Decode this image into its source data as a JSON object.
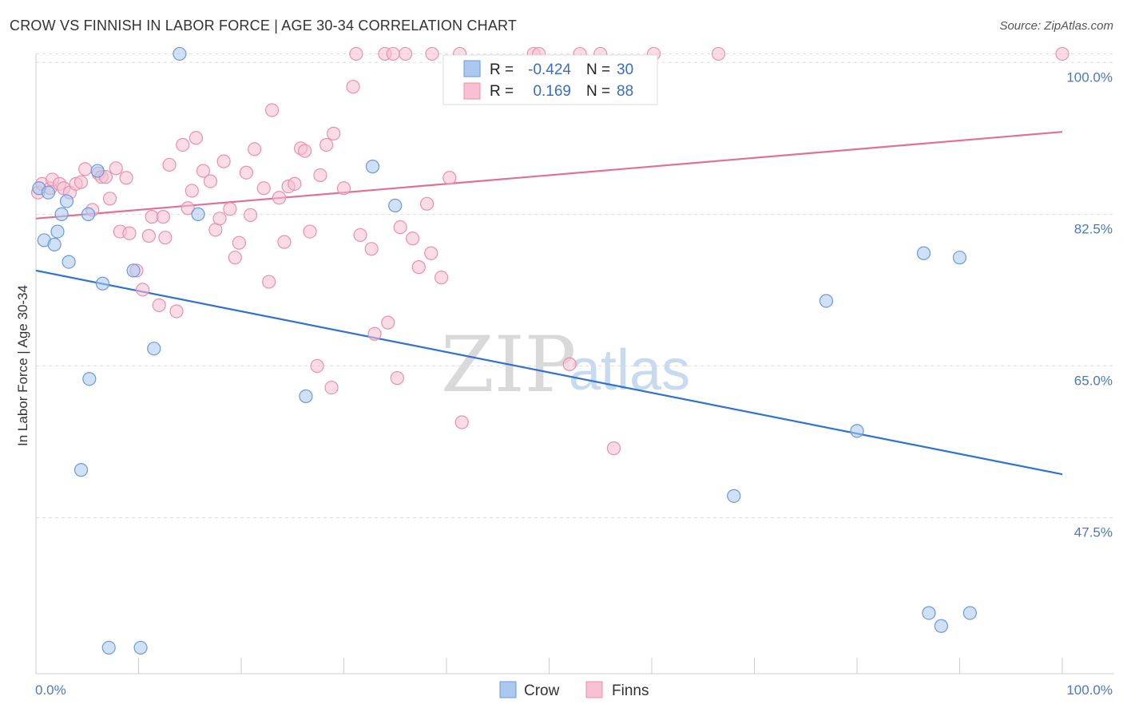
{
  "header": {
    "title": "CROW VS FINNISH IN LABOR FORCE | AGE 30-34 CORRELATION CHART",
    "source": "Source: ZipAtlas.com"
  },
  "watermark": {
    "zip": "ZIP",
    "atlas": "atlas"
  },
  "legend": {
    "r_label": "R =",
    "n_label": "N =",
    "crow": {
      "r": "-0.424",
      "n": "30"
    },
    "finns": {
      "r": "0.169",
      "n": "88"
    }
  },
  "bottom_legend": {
    "crow": "Crow",
    "finns": "Finns"
  },
  "colors": {
    "crow_fill": "#aac8f0",
    "crow_stroke": "#6a9ad8",
    "crow_line": "#2f72d0",
    "finns_fill": "#f8c0d2",
    "finns_stroke": "#e890ae",
    "finns_line": "#e07098",
    "grid": "#dddddd",
    "axis_text": "#4a78c2"
  },
  "chart_data": {
    "type": "scatter",
    "title": "CROW VS FINNISH IN LABOR FORCE | AGE 30-34 CORRELATION CHART",
    "xlabel": "",
    "ylabel": "In Labor Force | Age 30-34",
    "xlim": [
      0,
      100
    ],
    "ylim": [
      29.5,
      101.5
    ],
    "x_tick_labels": [
      "0.0%",
      "100.0%"
    ],
    "y_ticks": [
      47.5,
      65.0,
      82.5,
      100.0
    ],
    "y_tick_labels": [
      "47.5%",
      "65.0%",
      "82.5%",
      "100.0%"
    ],
    "series": [
      {
        "name": "Crow",
        "r": -0.424,
        "n": 30,
        "trend": {
          "x": [
            0,
            100
          ],
          "y": [
            76.0,
            52.5
          ]
        },
        "points": [
          [
            0.3,
            85.5
          ],
          [
            0.8,
            79.5
          ],
          [
            1.2,
            85.0
          ],
          [
            1.8,
            79.0
          ],
          [
            2.1,
            80.5
          ],
          [
            2.5,
            82.5
          ],
          [
            3.0,
            84.0
          ],
          [
            3.2,
            77.0
          ],
          [
            4.4,
            53.0
          ],
          [
            5.1,
            82.5
          ],
          [
            5.2,
            63.5
          ],
          [
            6.0,
            87.5
          ],
          [
            6.5,
            74.5
          ],
          [
            7.1,
            32.5
          ],
          [
            10.2,
            32.5
          ],
          [
            9.5,
            76.0
          ],
          [
            11.5,
            67.0
          ],
          [
            14.0,
            101.0
          ],
          [
            15.8,
            82.5
          ],
          [
            26.3,
            61.5
          ],
          [
            32.8,
            88.0
          ],
          [
            35.0,
            83.5
          ],
          [
            68.0,
            50.0
          ],
          [
            77.0,
            72.5
          ],
          [
            80.0,
            57.5
          ],
          [
            86.5,
            78.0
          ],
          [
            90.0,
            77.5
          ],
          [
            87.0,
            36.5
          ],
          [
            88.2,
            35.0
          ],
          [
            91.0,
            36.5
          ]
        ]
      },
      {
        "name": "Finns",
        "r": 0.169,
        "n": 88,
        "trend": {
          "x": [
            0,
            100
          ],
          "y": [
            82.0,
            92.0
          ]
        },
        "points": [
          [
            0.2,
            85.0
          ],
          [
            0.6,
            86.0
          ],
          [
            1.4,
            85.5
          ],
          [
            1.6,
            86.5
          ],
          [
            2.3,
            86.0
          ],
          [
            2.7,
            85.5
          ],
          [
            3.3,
            85.0
          ],
          [
            3.9,
            86.0
          ],
          [
            4.4,
            86.2
          ],
          [
            4.8,
            87.7
          ],
          [
            5.5,
            83.0
          ],
          [
            6.1,
            87.2
          ],
          [
            6.4,
            86.8
          ],
          [
            6.8,
            86.8
          ],
          [
            7.2,
            84.3
          ],
          [
            7.8,
            87.8
          ],
          [
            8.2,
            80.5
          ],
          [
            8.8,
            86.7
          ],
          [
            9.1,
            80.3
          ],
          [
            9.8,
            76.0
          ],
          [
            10.4,
            73.8
          ],
          [
            11.0,
            80.0
          ],
          [
            11.3,
            82.2
          ],
          [
            12.0,
            72.0
          ],
          [
            12.4,
            82.2
          ],
          [
            12.6,
            79.8
          ],
          [
            13.0,
            88.2
          ],
          [
            13.7,
            71.3
          ],
          [
            14.3,
            90.5
          ],
          [
            14.8,
            83.2
          ],
          [
            15.2,
            85.2
          ],
          [
            15.6,
            91.3
          ],
          [
            16.3,
            87.5
          ],
          [
            17.0,
            86.3
          ],
          [
            17.5,
            80.7
          ],
          [
            17.9,
            82.0
          ],
          [
            18.3,
            88.6
          ],
          [
            18.9,
            83.1
          ],
          [
            19.4,
            77.5
          ],
          [
            19.8,
            79.2
          ],
          [
            20.5,
            87.3
          ],
          [
            20.9,
            82.4
          ],
          [
            21.3,
            90.0
          ],
          [
            22.2,
            85.5
          ],
          [
            22.7,
            74.7
          ],
          [
            23.0,
            94.5
          ],
          [
            23.7,
            84.4
          ],
          [
            24.2,
            79.3
          ],
          [
            24.6,
            85.7
          ],
          [
            25.2,
            86.0
          ],
          [
            25.8,
            90.1
          ],
          [
            26.2,
            89.8
          ],
          [
            26.7,
            80.5
          ],
          [
            27.4,
            65.0
          ],
          [
            27.7,
            87.0
          ],
          [
            28.3,
            90.5
          ],
          [
            28.8,
            62.5
          ],
          [
            29.0,
            91.8
          ],
          [
            30.0,
            85.5
          ],
          [
            30.9,
            97.2
          ],
          [
            31.2,
            101.0
          ],
          [
            31.6,
            80.1
          ],
          [
            32.7,
            78.5
          ],
          [
            33.0,
            68.7
          ],
          [
            34.0,
            101.0
          ],
          [
            34.3,
            70.0
          ],
          [
            35.2,
            63.6
          ],
          [
            35.5,
            81.0
          ],
          [
            36.7,
            79.7
          ],
          [
            37.3,
            76.4
          ],
          [
            38.1,
            83.7
          ],
          [
            38.5,
            78.0
          ],
          [
            38.6,
            101.0
          ],
          [
            39.5,
            75.2
          ],
          [
            40.3,
            86.7
          ],
          [
            41.3,
            101.0
          ],
          [
            41.5,
            58.5
          ],
          [
            48.5,
            101.0
          ],
          [
            49.0,
            101.0
          ],
          [
            52.0,
            65.2
          ],
          [
            53.0,
            101.0
          ],
          [
            55.0,
            101.0
          ],
          [
            56.3,
            55.5
          ],
          [
            60.2,
            101.0
          ],
          [
            100.0,
            101.0
          ],
          [
            66.5,
            101.0
          ],
          [
            36.0,
            101.0
          ],
          [
            34.8,
            101.0
          ]
        ]
      }
    ],
    "legend_position": "top-center"
  }
}
